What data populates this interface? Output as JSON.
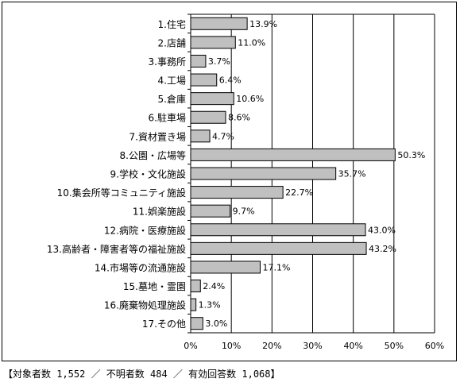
{
  "chart_data": {
    "type": "bar",
    "orientation": "horizontal",
    "categories": [
      "1.住宅",
      "2.店舗",
      "3.事務所",
      "4.工場",
      "5.倉庫",
      "6.駐車場",
      "7.資材置き場",
      "8.公園・広場等",
      "9.学校・文化施設",
      "10.集会所等コミュニティ施設",
      "11.娯楽施設",
      "12.病院・医療施設",
      "13.高齢者・障害者等の福祉施設",
      "14.市場等の流通施設",
      "15.墓地・霊園",
      "16.廃棄物処理施設",
      "17.その他"
    ],
    "values": [
      13.9,
      11.0,
      3.7,
      6.4,
      10.6,
      8.6,
      4.7,
      50.3,
      35.7,
      22.7,
      9.7,
      43.0,
      43.2,
      17.1,
      2.4,
      1.3,
      3.0
    ],
    "value_labels": [
      "13.9%",
      "11.0%",
      "3.7%",
      "6.4%",
      "10.6%",
      "8.6%",
      "4.7%",
      "50.3%",
      "35.7%",
      "22.7%",
      "9.7%",
      "43.0%",
      "43.2%",
      "17.1%",
      "2.4%",
      "1.3%",
      "3.0%"
    ],
    "x_ticks": [
      "0%",
      "10%",
      "20%",
      "30%",
      "40%",
      "50%",
      "60%"
    ],
    "xlim": [
      0,
      60
    ],
    "grid": true,
    "bar_color": "#c0c0c0",
    "bar_stroke": "#000000"
  },
  "footnote": "【対象者数 1,552 ／ 不明者数 484 ／ 有効回答数 1,068】"
}
